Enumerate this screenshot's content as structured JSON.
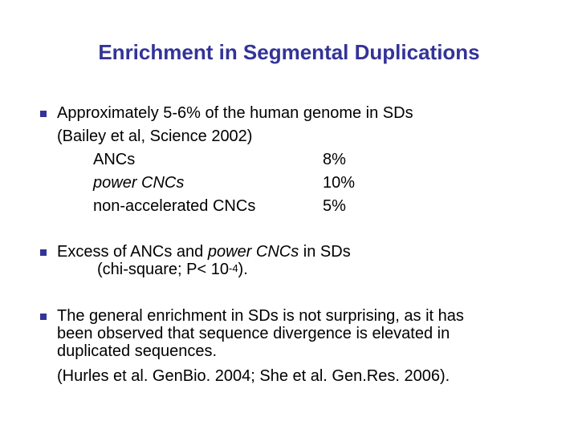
{
  "title": "Enrichment in Segmental Duplications",
  "bullets": [
    {
      "line1": "Approximately 5-6% of the human genome in SDs",
      "line2": "(Bailey et al, Science 2002)",
      "rows": [
        {
          "label": "ANCs",
          "value": "8%"
        },
        {
          "label": "power CNCs",
          "value": "10%"
        },
        {
          "label": "non-accelerated CNCs",
          "value": "5%"
        }
      ]
    },
    {
      "line1_pre": "Excess of ANCs and ",
      "line1_ital": "power CNCs",
      "line1_post": " in SDs",
      "line2_pre": "(chi-square; P< 10",
      "line2_sup": "-4",
      "line2_post": ")."
    },
    {
      "line1": "The general enrichment in SDs is not surprising, as it has",
      "line2": "been observed that sequence divergence is elevated in",
      "line3": "duplicated sequences.",
      "line4": "(Hurles et al. GenBio. 2004; She et al. Gen.Res. 2006)."
    }
  ],
  "colors": {
    "title": "#333399",
    "bullet": "#333399"
  }
}
